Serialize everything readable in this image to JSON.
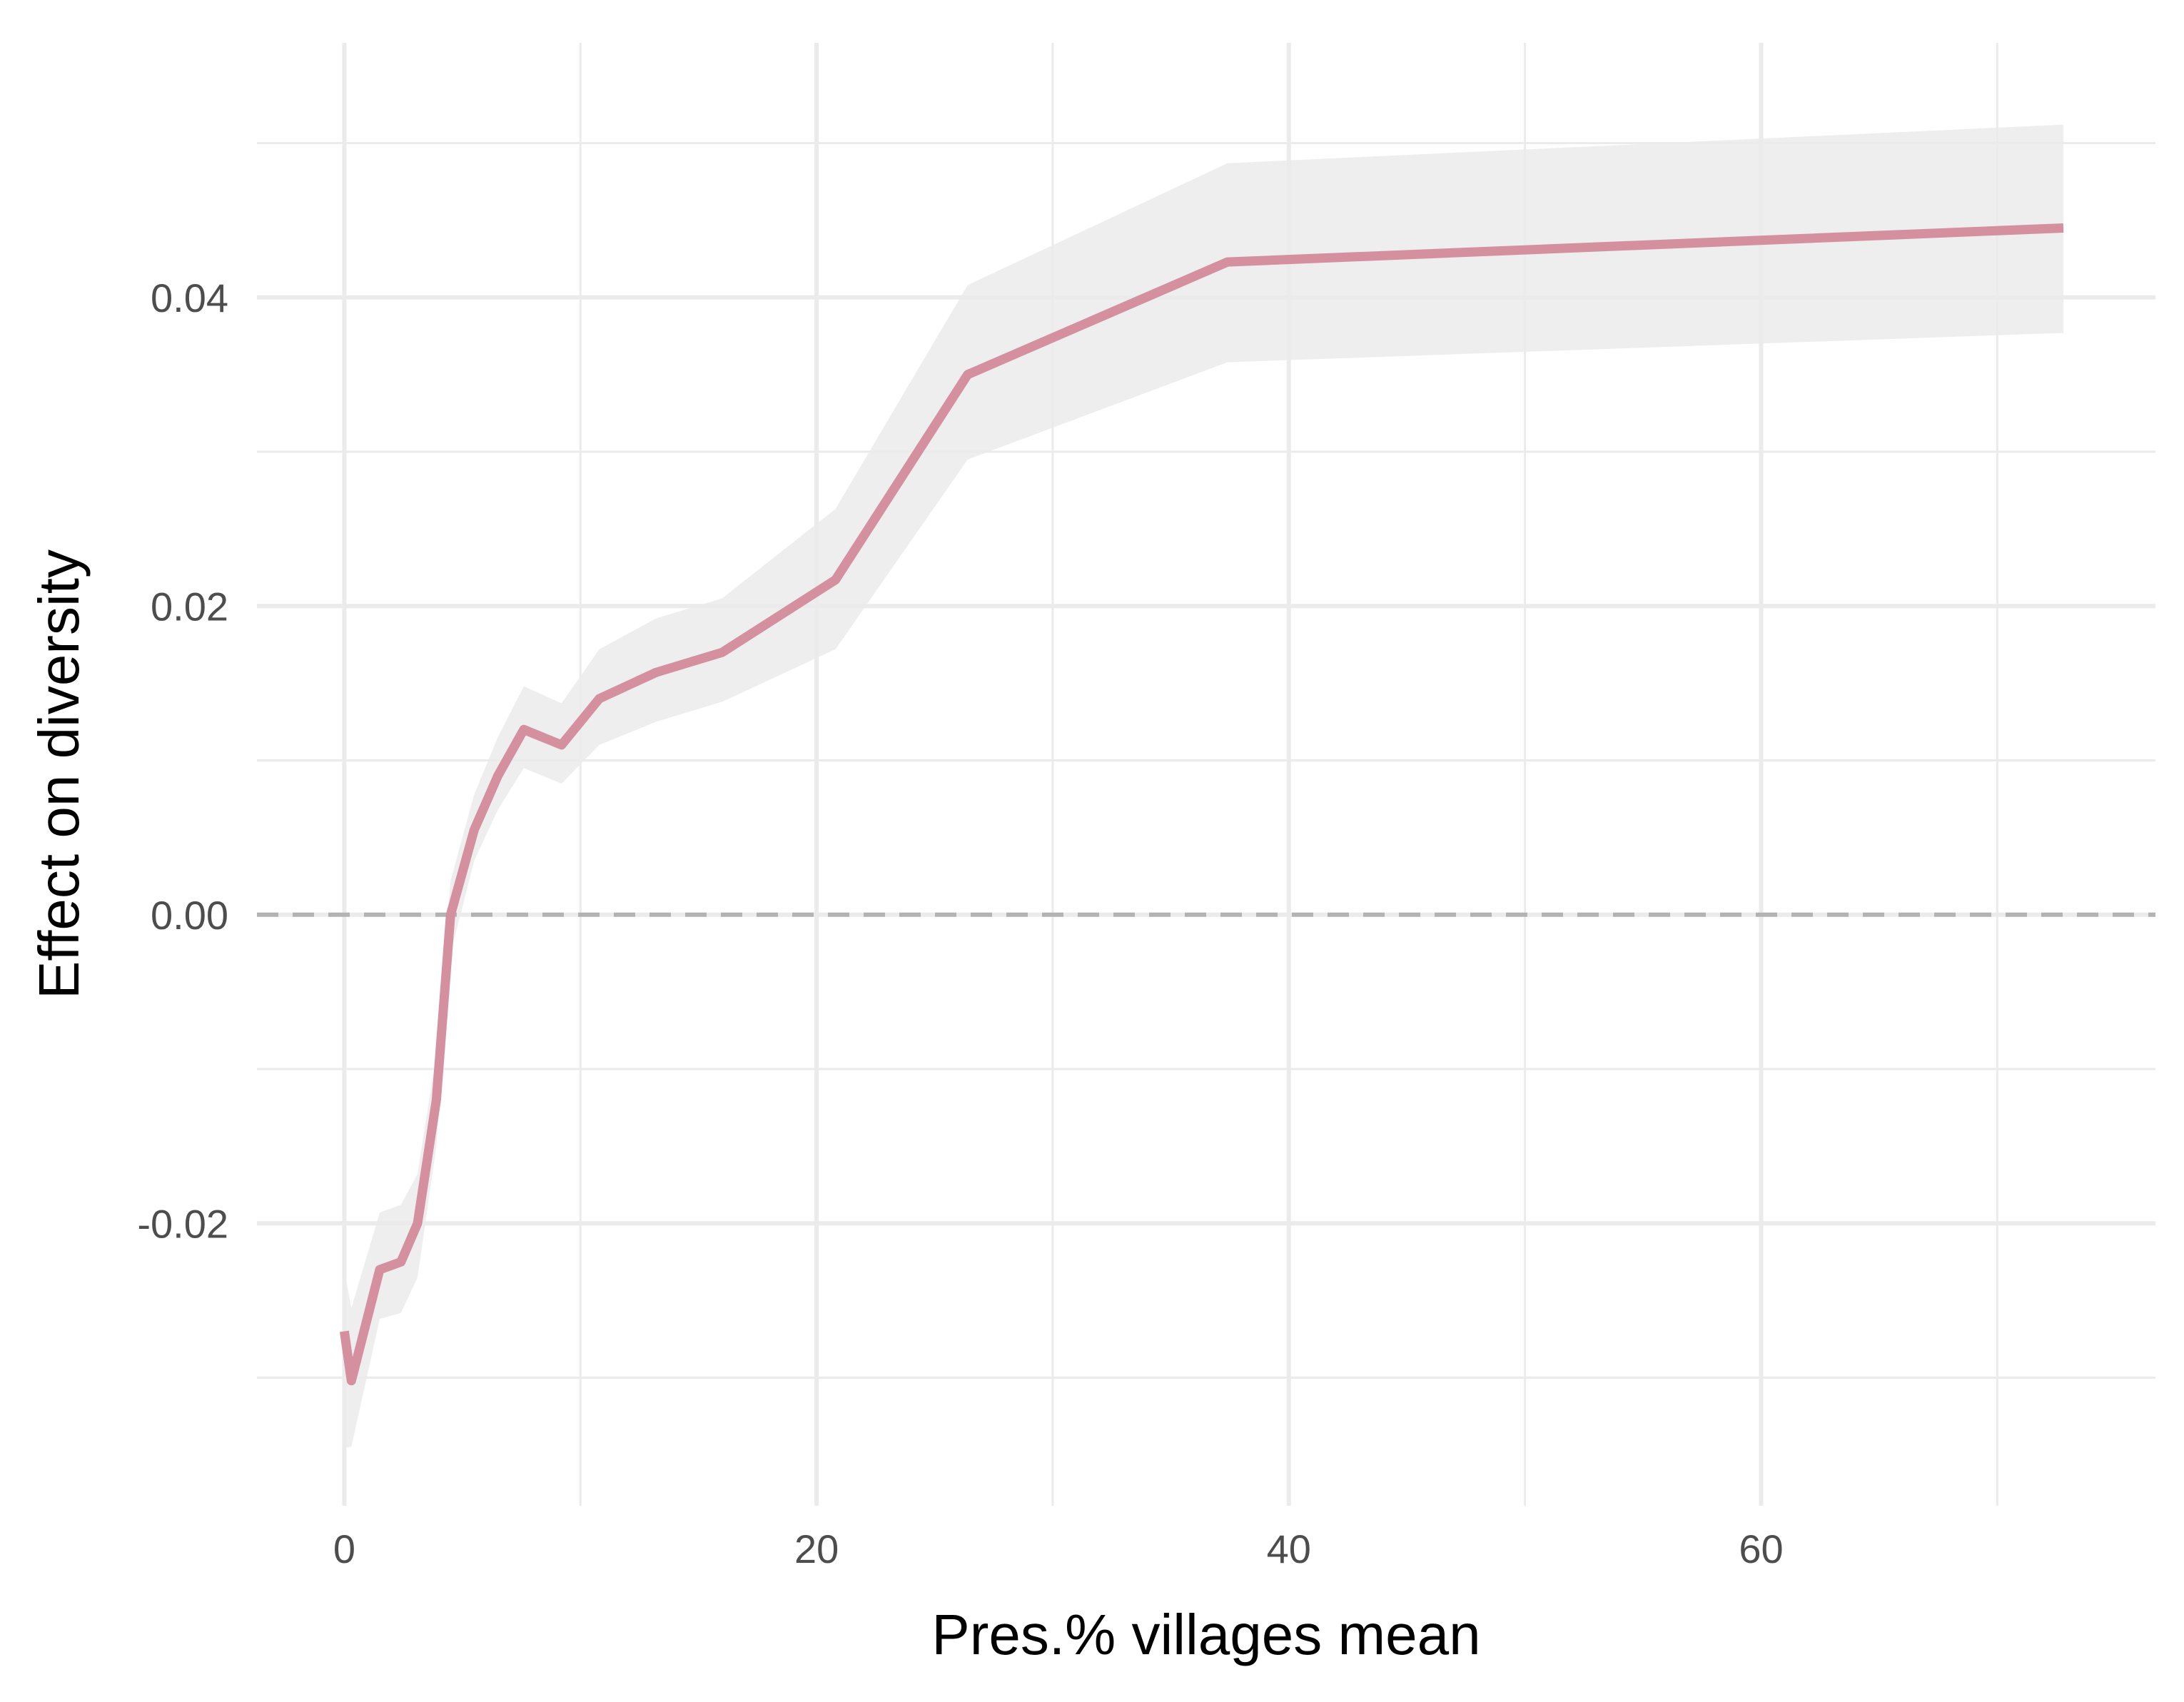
{
  "chart_data": {
    "type": "line",
    "title": "",
    "xlabel": "Pres.% villages mean",
    "ylabel": "Effect on diversity",
    "xlim": [
      -3.7,
      76.7
    ],
    "ylim": [
      -0.0383,
      0.0565
    ],
    "x_ticks": [
      0,
      20,
      40,
      60
    ],
    "x_tick_labels": [
      "0",
      "20",
      "40",
      "60"
    ],
    "y_ticks": [
      -0.02,
      0.0,
      0.02,
      0.04
    ],
    "y_tick_labels": [
      "-0.02",
      "0.00",
      "0.02",
      "0.04"
    ],
    "x_minor_ticks": [
      10,
      30,
      50,
      70
    ],
    "y_minor_ticks": [
      -0.03,
      -0.01,
      0.01,
      0.03,
      0.05
    ],
    "grid": true,
    "reference_line": {
      "y": 0,
      "style": "dashed",
      "color": "#b3b3b3"
    },
    "colors": {
      "line": "#d4909e",
      "ribbon": "#ebebeb",
      "grid": "#ebebeb",
      "tick_text": "#4d4d4d",
      "axis_title": "#000000"
    },
    "series": [
      {
        "x": [
          0.0,
          0.3,
          1.5,
          2.4,
          3.1,
          3.9,
          4.5,
          5.5,
          6.5,
          7.6,
          9.2,
          10.8,
          13.2,
          16.0,
          20.8,
          26.4,
          37.4,
          72.8
        ],
        "y": [
          -0.027,
          -0.0302,
          -0.023,
          -0.0225,
          -0.02,
          -0.012,
          0.0,
          0.0055,
          0.009,
          0.012,
          0.011,
          0.014,
          0.0157,
          0.017,
          0.0217,
          0.035,
          0.0423,
          0.0445
        ],
        "lower": [
          -0.0345,
          -0.0345,
          -0.0262,
          -0.0258,
          -0.0235,
          -0.015,
          -0.0025,
          0.0035,
          0.0068,
          0.0095,
          0.0085,
          0.011,
          0.0125,
          0.0138,
          0.0172,
          0.0295,
          0.0358,
          0.0377
        ],
        "upper": [
          -0.023,
          -0.0255,
          -0.0193,
          -0.0188,
          -0.0168,
          -0.009,
          0.0022,
          0.0078,
          0.0115,
          0.0148,
          0.0137,
          0.0172,
          0.0192,
          0.0205,
          0.0263,
          0.0408,
          0.0487,
          0.0512
        ]
      }
    ]
  }
}
